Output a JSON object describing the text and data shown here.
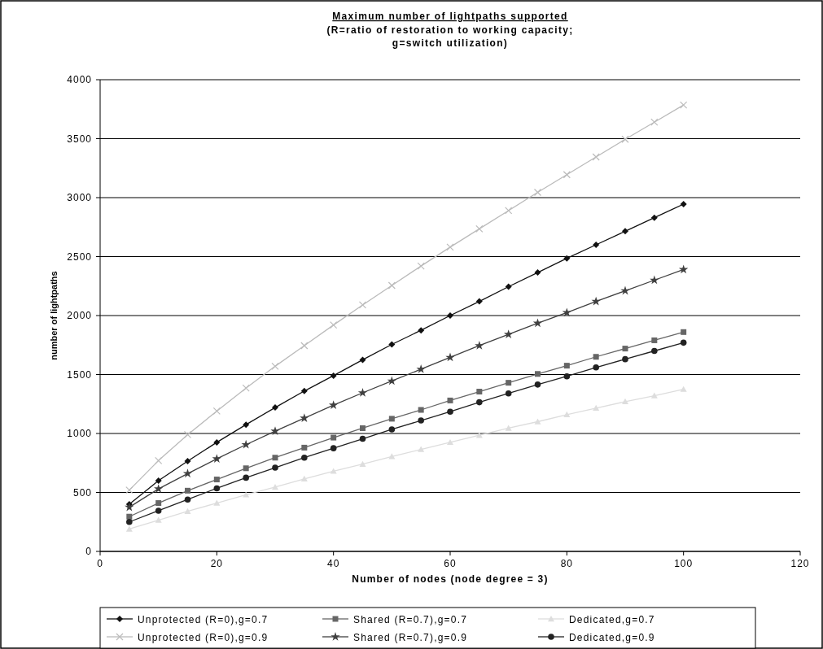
{
  "chart_data": {
    "type": "line",
    "title": "Maximum number of lightpaths supported",
    "subtitle": "(R=ratio of restoration to working capacity; g=switch utilization)",
    "xlabel": "Number of nodes (node degree = 3)",
    "ylabel": "number of lightpaths",
    "x": [
      5,
      10,
      15,
      20,
      25,
      30,
      35,
      40,
      45,
      50,
      55,
      60,
      65,
      70,
      75,
      80,
      85,
      90,
      95,
      100
    ],
    "xlim": [
      0,
      120
    ],
    "xticks": [
      0,
      20,
      40,
      60,
      80,
      100,
      120
    ],
    "ylim": [
      0,
      4000
    ],
    "yticks": [
      0,
      500,
      1000,
      1500,
      2000,
      2500,
      3000,
      3500,
      4000
    ],
    "grid": "y",
    "legend": "bottom",
    "line_style": "solid",
    "series": [
      {
        "name": "Unprotected (R=0),g=0.7",
        "color": "#111111",
        "marker": "diamond",
        "values": [
          400,
          600,
          765,
          925,
          1075,
          1220,
          1360,
          1490,
          1625,
          1755,
          1875,
          2000,
          2120,
          2245,
          2365,
          2485,
          2600,
          2715,
          2830,
          2945
        ]
      },
      {
        "name": "Shared (R=0.7),g=0.7",
        "color": "#666666",
        "marker": "square",
        "values": [
          295,
          410,
          515,
          610,
          705,
          795,
          880,
          965,
          1045,
          1125,
          1200,
          1280,
          1355,
          1430,
          1505,
          1575,
          1650,
          1720,
          1790,
          1860
        ]
      },
      {
        "name": "Dedicated,g=0.7",
        "color": "#dddddd",
        "marker": "triangle",
        "values": [
          190,
          265,
          340,
          410,
          480,
          545,
          615,
          680,
          740,
          805,
          865,
          925,
          985,
          1045,
          1100,
          1160,
          1215,
          1270,
          1320,
          1375
        ]
      },
      {
        "name": "Unprotected (R=0),g=0.9",
        "color": "#bbbbbb",
        "marker": "cross",
        "values": [
          520,
          770,
          990,
          1190,
          1385,
          1570,
          1745,
          1920,
          2090,
          2255,
          2420,
          2580,
          2735,
          2890,
          3045,
          3195,
          3345,
          3495,
          3640,
          3785
        ]
      },
      {
        "name": "Shared (R=0.7),g=0.9",
        "color": "#404040",
        "marker": "star",
        "values": [
          375,
          530,
          660,
          785,
          905,
          1020,
          1130,
          1240,
          1345,
          1445,
          1545,
          1645,
          1745,
          1840,
          1935,
          2025,
          2120,
          2210,
          2300,
          2390
        ]
      },
      {
        "name": "Dedicated,g=0.9",
        "color": "#222222",
        "marker": "circle",
        "values": [
          250,
          345,
          440,
          535,
          625,
          710,
          795,
          875,
          955,
          1035,
          1110,
          1185,
          1265,
          1340,
          1415,
          1485,
          1560,
          1630,
          1700,
          1770
        ]
      }
    ]
  }
}
